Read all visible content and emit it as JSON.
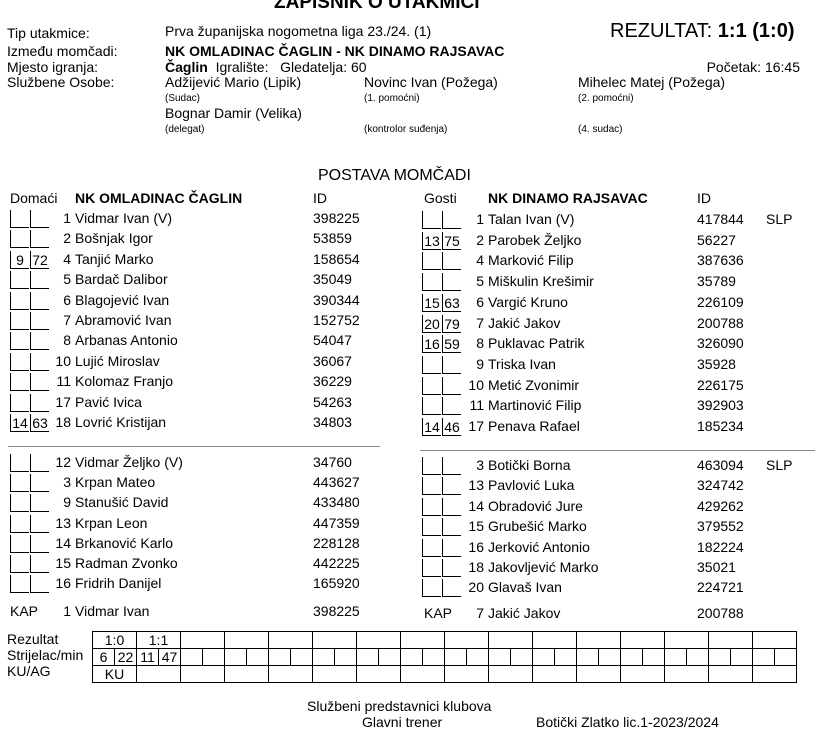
{
  "title": "ZAPISNIK O UTAKMICI",
  "header": {
    "tip_label": "Tip utakmice:",
    "tip": "Prva županijska nogometna liga 23./24. (1)",
    "rezultat_label": "REZULTAT:",
    "rezultat": "1:1 (1:0)",
    "izmedu_label": "Između momčadi:",
    "izmedu": "NK OMLADINAC ČAGLIN - NK DINAMO RAJSAVAC",
    "mjesto_label": "Mjesto igranja:",
    "mjesto": "Čaglin",
    "igraliste": "Igralište:",
    "gledatelja": "Gledatelja: 60",
    "pocetak": "Početak: 16:45",
    "osobe_label": "Službene Osobe:",
    "officials": [
      {
        "name": "Adžijević Mario (Lipik)",
        "role": "(Sudac)"
      },
      {
        "name": "Novinc Ivan (Požega)",
        "role": "(1. pomoćni)"
      },
      {
        "name": "Mihelec Matej (Požega)",
        "role": "(2. pomoćni)"
      },
      {
        "name": "Bognar Damir (Velika)",
        "role": "(delegat)"
      },
      {
        "name": "",
        "role": "(kontrolor suđenja)"
      },
      {
        "name": "",
        "role": "(4. sudac)"
      }
    ]
  },
  "postava": "POSTAVA MOMČADI",
  "home": {
    "label": "Domaći",
    "team": "NK OMLADINAC ČAGLIN",
    "id_label": "ID",
    "starters": [
      [
        "",
        "",
        "1",
        "Vidmar Ivan  (V)",
        "398225",
        ""
      ],
      [
        "",
        "",
        "2",
        "Bošnjak Igor",
        "53859",
        ""
      ],
      [
        "9",
        "72",
        "4",
        "Tanjić Marko",
        "158654",
        ""
      ],
      [
        "",
        "",
        "5",
        "Bardač Dalibor",
        "35049",
        ""
      ],
      [
        "",
        "",
        "6",
        "Blagojević Ivan",
        "390344",
        ""
      ],
      [
        "",
        "",
        "7",
        "Abramović Ivan",
        "152752",
        ""
      ],
      [
        "",
        "",
        "8",
        "Arbanas Antonio",
        "54047",
        ""
      ],
      [
        "",
        "",
        "10",
        "Lujić Miroslav",
        "36067",
        ""
      ],
      [
        "",
        "",
        "11",
        "Kolomaz Franjo",
        "36229",
        ""
      ],
      [
        "",
        "",
        "17",
        "Pavić Ivica",
        "54263",
        ""
      ],
      [
        "14",
        "63",
        "18",
        "Lovrić Kristijan",
        "34803",
        ""
      ]
    ],
    "subs": [
      [
        "",
        "",
        "12",
        "Vidmar Željko  (V)",
        "34760",
        ""
      ],
      [
        "",
        "",
        "3",
        "Krpan Mateo",
        "443627",
        ""
      ],
      [
        "",
        "",
        "9",
        "Stanušić David",
        "433480",
        ""
      ],
      [
        "",
        "",
        "13",
        "Krpan Leon",
        "447359",
        ""
      ],
      [
        "",
        "",
        "14",
        "Brkanović Karlo",
        "228128",
        ""
      ],
      [
        "",
        "",
        "15",
        "Radman Zvonko",
        "442225",
        ""
      ],
      [
        "",
        "",
        "16",
        "Fridrih Danijel",
        "165920",
        ""
      ]
    ],
    "kap": {
      "label": "KAP",
      "num": "1",
      "name": "Vidmar Ivan",
      "id": "398225"
    }
  },
  "away": {
    "label": "Gosti",
    "team": "NK DINAMO RAJSAVAC",
    "id_label": "ID",
    "starters": [
      [
        "",
        "",
        "1",
        "Talan Ivan  (V)",
        "417844",
        "SLP"
      ],
      [
        "13",
        "75",
        "2",
        "Parobek Željko",
        "56227",
        ""
      ],
      [
        "",
        "",
        "4",
        "Marković Filip",
        "387636",
        ""
      ],
      [
        "",
        "",
        "5",
        "Miškulin Krešimir",
        "35789",
        ""
      ],
      [
        "15",
        "63",
        "6",
        "Vargić Kruno",
        "226109",
        ""
      ],
      [
        "20",
        "79",
        "7",
        "Jakić Jakov",
        "200788",
        ""
      ],
      [
        "16",
        "59",
        "8",
        "Puklavac Patrik",
        "326090",
        ""
      ],
      [
        "",
        "",
        "9",
        "Triska Ivan",
        "35928",
        ""
      ],
      [
        "",
        "",
        "10",
        "Metić Zvonimir",
        "226175",
        ""
      ],
      [
        "",
        "",
        "11",
        "Martinović Filip",
        "392903",
        ""
      ],
      [
        "14",
        "46",
        "17",
        "Penava Rafael",
        "185234",
        ""
      ]
    ],
    "subs": [
      [
        "",
        "",
        "3",
        "Botički Borna",
        "463094",
        "SLP"
      ],
      [
        "",
        "",
        "13",
        "Pavlović Luka",
        "324742",
        ""
      ],
      [
        "",
        "",
        "14",
        "Obradović Jure",
        "429262",
        ""
      ],
      [
        "",
        "",
        "15",
        "Grubešić Marko",
        "379552",
        ""
      ],
      [
        "",
        "",
        "16",
        "Jerković Antonio",
        "182224",
        ""
      ],
      [
        "",
        "",
        "18",
        "Jakovljević Marko",
        "35021",
        ""
      ],
      [
        "",
        "",
        "20",
        "Glavaš Ivan",
        "224721",
        ""
      ]
    ],
    "kap": {
      "label": "KAP",
      "num": "7",
      "name": "Jakić Jakov",
      "id": "200788"
    }
  },
  "goals": {
    "labels": [
      "Rezultat",
      "Strijelac/min",
      "KU/AG"
    ],
    "results": [
      "1:0",
      "1:1"
    ],
    "scorers": [
      [
        "6",
        "22"
      ],
      [
        "11",
        "47"
      ]
    ],
    "kuag": [
      "KU",
      ""
    ]
  },
  "footer": {
    "title": "Službeni predstavnici klubova",
    "role": "Glavni trener",
    "name": "Botički Zlatko lic.1-2023/2024"
  }
}
